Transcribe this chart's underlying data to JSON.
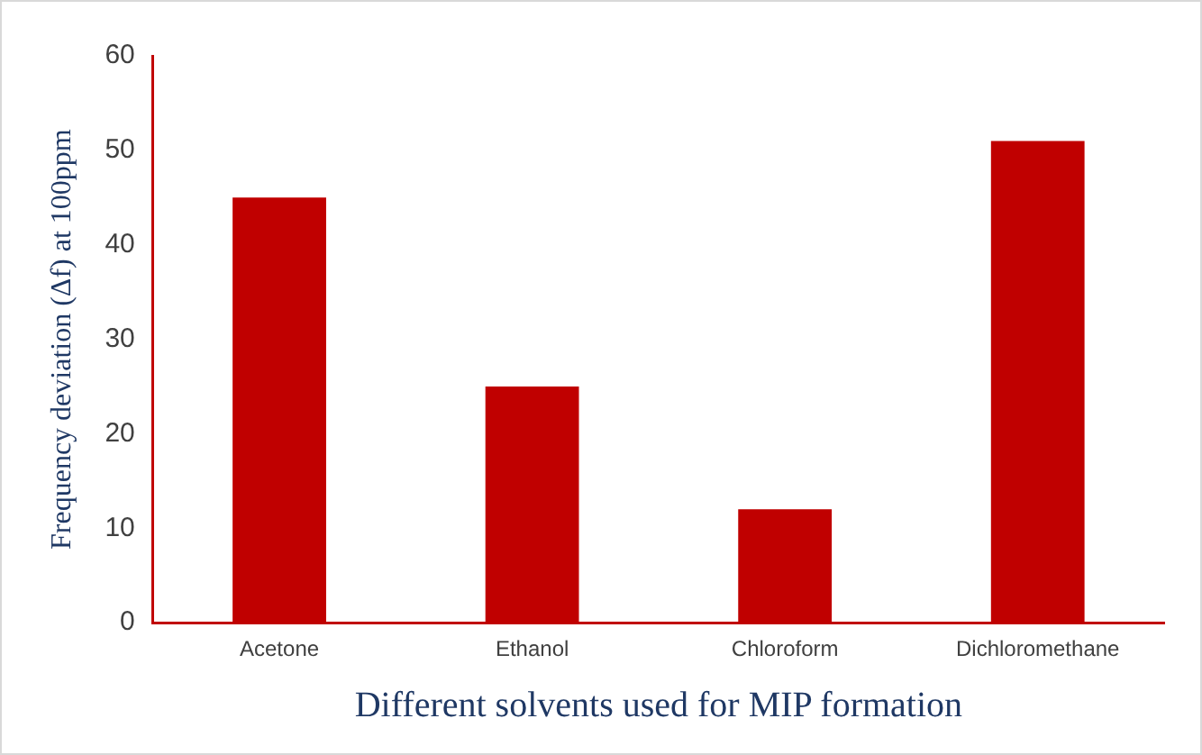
{
  "chart_data": {
    "type": "bar",
    "xlabel": "Different solvents used for MIP formation",
    "ylabel": "Frequency deviation (Δf) at 100ppm",
    "categories": [
      "Acetone",
      "Ethanol",
      "Chloroform",
      "Dichloromethane"
    ],
    "values": [
      45,
      25,
      12,
      51
    ],
    "color": "#c00000",
    "ylim": [
      0,
      60
    ],
    "yticks": [
      0,
      10,
      20,
      30,
      40,
      50,
      60
    ],
    "grid": false,
    "legend": false
  }
}
